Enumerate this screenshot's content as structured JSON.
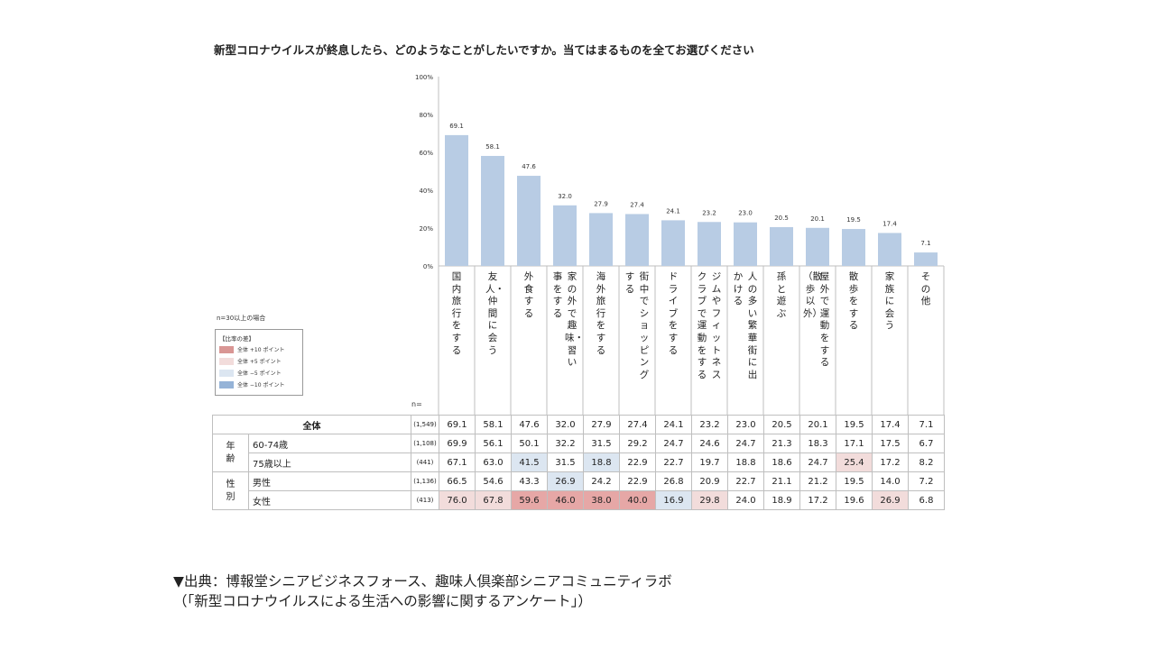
{
  "chart_data": {
    "type": "bar",
    "title": "新型コロナウイルスが終息したら、どのようなことがしたいですか。当てはまるものを全てお選びください",
    "categories": [
      "国内旅行をする",
      "友人・仲間に会う",
      "外食する",
      "家の外で趣味・習い事をする",
      "海外旅行をする",
      "街中でショッピングする",
      "ドライブをする",
      "ジムやフィットネスクラブで運動をする",
      "人の多い繁華街に出かける",
      "孫と遊ぶ",
      "屋外で運動をする（散歩以外）",
      "散歩をする",
      "家族に会う",
      "その他"
    ],
    "category_columns": [
      [
        "国内旅行をする"
      ],
      [
        "友人・仲間に会う"
      ],
      [
        "外食する"
      ],
      [
        "家の外で趣味・習い",
        "事をする"
      ],
      [
        "海外旅行をする"
      ],
      [
        "街中でショッピング",
        "する"
      ],
      [
        "ドライブをする"
      ],
      [
        "ジムやフィットネス",
        "クラブで運動をする"
      ],
      [
        "人の多い繁華街に出",
        "かける"
      ],
      [
        "孫と遊ぶ"
      ],
      [
        "屋外で運動をする",
        "（散歩以外）"
      ],
      [
        "散歩をする"
      ],
      [
        "家族に会う"
      ],
      [
        "その他"
      ]
    ],
    "values": [
      69.1,
      58.1,
      47.6,
      32.0,
      27.9,
      27.4,
      24.1,
      23.2,
      23.0,
      20.5,
      20.1,
      19.5,
      17.4,
      7.1
    ],
    "value_labels": [
      "69.1",
      "58.1",
      "47.6",
      "32.0",
      "27.9",
      "27.4",
      "24.1",
      "23.2",
      "23.0",
      "20.5",
      "20.1",
      "19.5",
      "17.4",
      "7.1"
    ],
    "ylim": [
      0,
      100
    ],
    "yticks": [
      "0%",
      "20%",
      "40%",
      "60%",
      "80%",
      "100%"
    ],
    "bar_color": "#b8cce4",
    "table": {
      "n_header": "n=",
      "rows": [
        {
          "group": "",
          "label": "全体",
          "n": "(1,549)",
          "values": [
            "69.1",
            "58.1",
            "47.6",
            "32.0",
            "27.9",
            "27.4",
            "24.1",
            "23.2",
            "23.0",
            "20.5",
            "20.1",
            "19.5",
            "17.4",
            "7.1"
          ],
          "flags": [
            0,
            0,
            0,
            0,
            0,
            0,
            0,
            0,
            0,
            0,
            0,
            0,
            0,
            0
          ]
        },
        {
          "group": "年齢",
          "label": "60-74歳",
          "n": "(1,108)",
          "values": [
            "69.9",
            "56.1",
            "50.1",
            "32.2",
            "31.5",
            "29.2",
            "24.7",
            "24.6",
            "24.7",
            "21.3",
            "18.3",
            "17.1",
            "17.5",
            "6.7"
          ],
          "flags": [
            0,
            0,
            0,
            0,
            0,
            0,
            0,
            0,
            0,
            0,
            0,
            0,
            0,
            0
          ]
        },
        {
          "group": "",
          "label": "75歳以上",
          "n": "(441)",
          "values": [
            "67.1",
            "63.0",
            "41.5",
            "31.5",
            "18.8",
            "22.9",
            "22.7",
            "19.7",
            "18.8",
            "18.6",
            "24.7",
            "25.4",
            "17.2",
            "8.2"
          ],
          "flags": [
            0,
            0,
            -5,
            0,
            -5,
            0,
            0,
            0,
            0,
            0,
            0,
            5,
            0,
            0
          ]
        },
        {
          "group": "性別",
          "label": "男性",
          "n": "(1,136)",
          "values": [
            "66.5",
            "54.6",
            "43.3",
            "26.9",
            "24.2",
            "22.9",
            "26.8",
            "20.9",
            "22.7",
            "21.1",
            "21.2",
            "19.5",
            "14.0",
            "7.2"
          ],
          "flags": [
            0,
            0,
            0,
            -5,
            0,
            0,
            0,
            0,
            0,
            0,
            0,
            0,
            0,
            0
          ]
        },
        {
          "group": "",
          "label": "女性",
          "n": "(413)",
          "values": [
            "76.0",
            "67.8",
            "59.6",
            "46.0",
            "38.0",
            "40.0",
            "16.9",
            "29.8",
            "24.0",
            "18.9",
            "17.2",
            "19.6",
            "26.9",
            "6.8"
          ],
          "flags": [
            5,
            5,
            10,
            10,
            10,
            10,
            -5,
            5,
            0,
            0,
            0,
            0,
            5,
            0
          ]
        }
      ]
    },
    "legend": {
      "condition": "n=30以上の場合",
      "heading": "【比率の差】",
      "items": [
        {
          "label": "全体 +10 ポイント",
          "color": "#d99694"
        },
        {
          "label": "全体 +5 ポイント",
          "color": "#f2dcdb"
        },
        {
          "label": "全体 −5 ポイント",
          "color": "#dce6f1"
        },
        {
          "label": "全体 −10 ポイント",
          "color": "#95b3d7"
        }
      ],
      "position": "left"
    },
    "flag_colors": {
      "10": "#e6a7a6",
      "5": "#f2dcdb",
      "-5": "#dce6f1",
      "-10": "#95b3d7"
    }
  },
  "source": {
    "line1": "▼出典：博報堂シニアビジネスフォース、趣味人倶楽部シニアコミュニティラボ",
    "line2": "（「新型コロナウイルスによる生活への影響に関するアンケート」）"
  }
}
